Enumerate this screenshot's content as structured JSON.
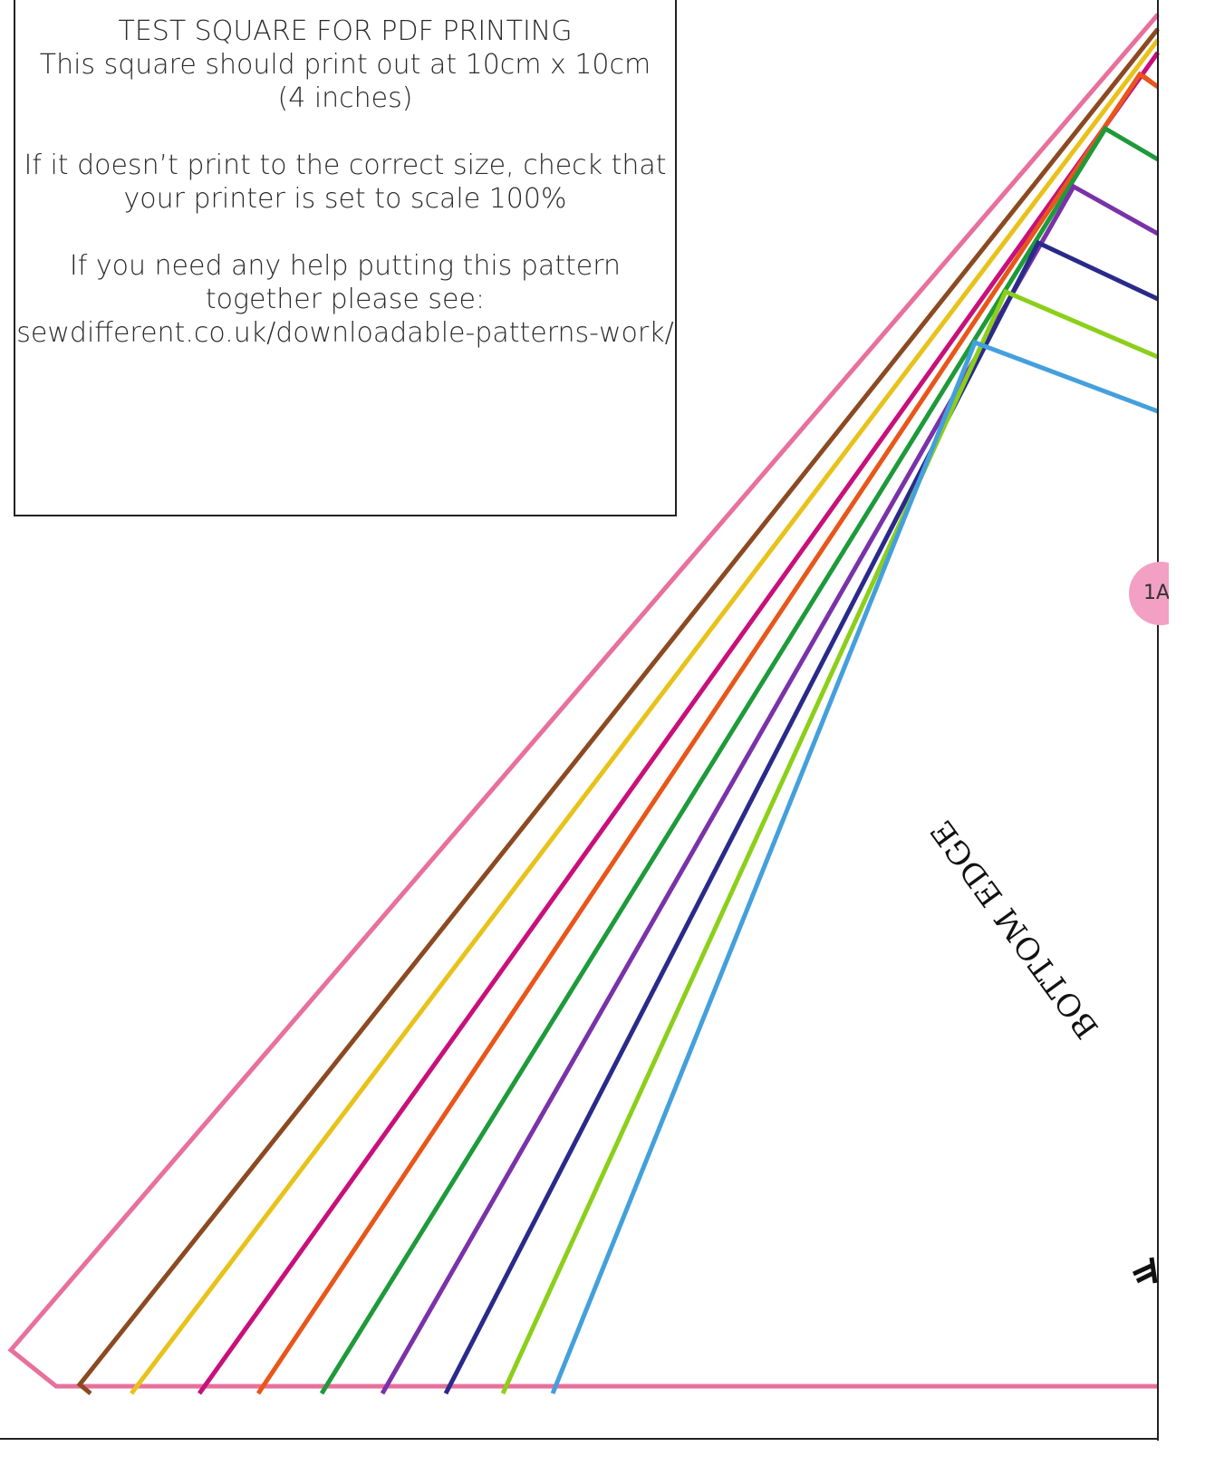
{
  "test_square": {
    "line1": "TEST SQUARE FOR PDF PRINTING",
    "line2": "This square should print out at 10cm x 10cm",
    "line3": "(4 inches)",
    "line4": "If it doesn’t print to the correct size, check that",
    "line5": "your printer is set to scale 100%",
    "line6": "If you need any help putting this pattern",
    "line7": "together please see:",
    "line8": "sewdifferent.co.uk/downloadable-patterns-work/"
  },
  "tab_marker": {
    "label": "1A"
  },
  "edge_label": "BOTTOM EDGE",
  "size_line_colors": [
    "#e8709c",
    "#8b4a22",
    "#e8c21a",
    "#c8107a",
    "#e8561a",
    "#1e9a3a",
    "#7a32a8",
    "#2a2a8a",
    "#8ccf1a",
    "#44a0dc"
  ]
}
